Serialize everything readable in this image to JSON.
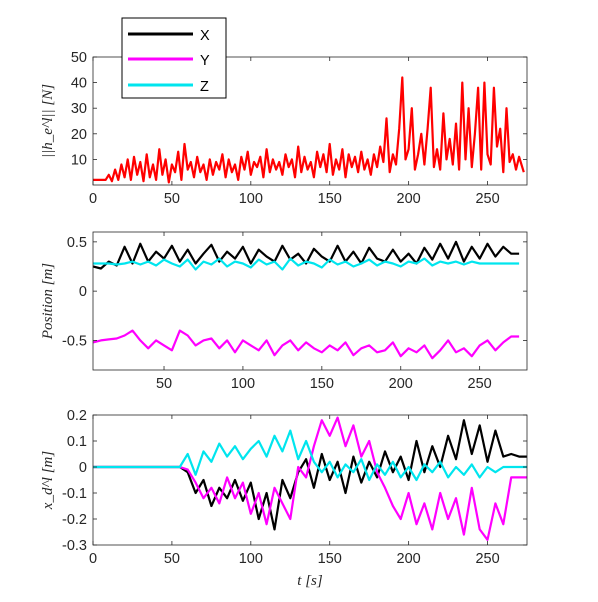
{
  "chart_data": [
    {
      "type": "line",
      "title": "",
      "xlabel": "",
      "ylabel": "||h_e^l|| [N]",
      "xlim": [
        0,
        275
      ],
      "ylim": [
        0,
        50
      ],
      "xticks": [
        "0",
        "50",
        "100",
        "150",
        "200",
        "250"
      ],
      "yticks": [
        "10",
        "20",
        "30",
        "40",
        "50"
      ],
      "grid": false,
      "series": [
        {
          "name": "",
          "color": "#ff0000",
          "x": [
            0,
            8,
            10,
            12,
            14,
            16,
            18,
            20,
            22,
            24,
            26,
            28,
            30,
            32,
            34,
            36,
            38,
            40,
            42,
            44,
            46,
            48,
            50,
            52,
            54,
            56,
            58,
            60,
            62,
            64,
            66,
            68,
            70,
            72,
            74,
            76,
            78,
            80,
            82,
            84,
            86,
            88,
            90,
            92,
            94,
            96,
            98,
            100,
            102,
            104,
            106,
            108,
            110,
            112,
            114,
            116,
            118,
            120,
            122,
            124,
            126,
            128,
            130,
            132,
            134,
            136,
            138,
            140,
            142,
            144,
            146,
            148,
            150,
            152,
            154,
            156,
            158,
            160,
            162,
            164,
            166,
            168,
            170,
            172,
            174,
            176,
            178,
            180,
            182,
            184,
            186,
            188,
            190,
            192,
            194,
            196,
            198,
            200,
            202,
            204,
            206,
            208,
            210,
            212,
            214,
            216,
            218,
            220,
            222,
            224,
            226,
            228,
            230,
            232,
            234,
            236,
            238,
            240,
            242,
            244,
            246,
            248,
            250,
            252,
            254,
            256,
            258,
            260,
            262,
            264,
            266,
            268,
            270,
            273
          ],
          "y": [
            2,
            2,
            4,
            1.5,
            6,
            2,
            8,
            3,
            10,
            2,
            11,
            4,
            9,
            1.5,
            12,
            3,
            8,
            2,
            14,
            4,
            10,
            1,
            8,
            5,
            13,
            2,
            16,
            6,
            9,
            3,
            11,
            5,
            8,
            2,
            10,
            4,
            9,
            6,
            12,
            3,
            10,
            5,
            8,
            2,
            11,
            6,
            13,
            4,
            9,
            7,
            11,
            3,
            14,
            5,
            10,
            6,
            9,
            4,
            12,
            7,
            10,
            3,
            15,
            5,
            11,
            6,
            9,
            3,
            13,
            7,
            12,
            5,
            16,
            4,
            10,
            6,
            14,
            3,
            12,
            7,
            11,
            5,
            13,
            6,
            10,
            4,
            12,
            7,
            15,
            9,
            26,
            5,
            12,
            8,
            22,
            42,
            10,
            14,
            30,
            6,
            12,
            20,
            8,
            22,
            38,
            7,
            14,
            6,
            28,
            10,
            18,
            8,
            24,
            6,
            40,
            10,
            30,
            7,
            20,
            38,
            6,
            40,
            12,
            8,
            38,
            15,
            22,
            5,
            30,
            9,
            12,
            6,
            11,
            5
          ]
        }
      ]
    },
    {
      "type": "line",
      "title": "",
      "xlabel": "",
      "ylabel": "Position [m]",
      "xlim": [
        5,
        280
      ],
      "ylim": [
        -0.8,
        0.6
      ],
      "xticks": [
        "50",
        "100",
        "150",
        "200",
        "250"
      ],
      "yticks": [
        "-0.5",
        "0",
        "0.5"
      ],
      "grid": false,
      "series": [
        {
          "name": "X",
          "color": "#000000",
          "x": [
            5,
            10,
            15,
            20,
            25,
            30,
            35,
            40,
            45,
            50,
            55,
            60,
            65,
            70,
            75,
            80,
            85,
            90,
            95,
            100,
            105,
            110,
            115,
            120,
            125,
            130,
            135,
            140,
            145,
            150,
            155,
            160,
            165,
            170,
            175,
            180,
            185,
            190,
            195,
            200,
            205,
            210,
            215,
            220,
            225,
            230,
            235,
            240,
            245,
            250,
            255,
            260,
            265,
            270,
            275
          ],
          "y": [
            0.25,
            0.23,
            0.3,
            0.26,
            0.45,
            0.28,
            0.48,
            0.3,
            0.4,
            0.33,
            0.46,
            0.3,
            0.42,
            0.28,
            0.38,
            0.47,
            0.3,
            0.4,
            0.33,
            0.45,
            0.28,
            0.42,
            0.35,
            0.3,
            0.46,
            0.32,
            0.38,
            0.28,
            0.43,
            0.35,
            0.3,
            0.46,
            0.3,
            0.4,
            0.28,
            0.44,
            0.33,
            0.3,
            0.42,
            0.3,
            0.38,
            0.28,
            0.44,
            0.32,
            0.48,
            0.33,
            0.5,
            0.3,
            0.45,
            0.33,
            0.48,
            0.35,
            0.45,
            0.38,
            0.38
          ]
        },
        {
          "name": "Y",
          "color": "#ff00ff",
          "x": [
            5,
            10,
            15,
            20,
            25,
            30,
            35,
            40,
            45,
            50,
            55,
            60,
            65,
            70,
            75,
            80,
            85,
            90,
            95,
            100,
            105,
            110,
            115,
            120,
            125,
            130,
            135,
            140,
            145,
            150,
            155,
            160,
            165,
            170,
            175,
            180,
            185,
            190,
            195,
            200,
            205,
            210,
            215,
            220,
            225,
            230,
            235,
            240,
            245,
            250,
            255,
            260,
            265,
            270,
            275
          ],
          "y": [
            -0.52,
            -0.5,
            -0.49,
            -0.48,
            -0.45,
            -0.4,
            -0.5,
            -0.58,
            -0.5,
            -0.55,
            -0.6,
            -0.4,
            -0.45,
            -0.55,
            -0.5,
            -0.48,
            -0.58,
            -0.5,
            -0.62,
            -0.5,
            -0.55,
            -0.6,
            -0.5,
            -0.65,
            -0.55,
            -0.5,
            -0.6,
            -0.52,
            -0.58,
            -0.62,
            -0.55,
            -0.6,
            -0.52,
            -0.65,
            -0.58,
            -0.55,
            -0.62,
            -0.6,
            -0.52,
            -0.66,
            -0.58,
            -0.62,
            -0.55,
            -0.68,
            -0.6,
            -0.5,
            -0.62,
            -0.58,
            -0.66,
            -0.55,
            -0.5,
            -0.6,
            -0.52,
            -0.46,
            -0.46
          ]
        },
        {
          "name": "Z",
          "color": "#00e5ee",
          "x": [
            5,
            10,
            15,
            20,
            25,
            30,
            35,
            40,
            45,
            50,
            55,
            60,
            65,
            70,
            75,
            80,
            85,
            90,
            95,
            100,
            105,
            110,
            115,
            120,
            125,
            130,
            135,
            140,
            145,
            150,
            155,
            160,
            165,
            170,
            175,
            180,
            185,
            190,
            195,
            200,
            205,
            210,
            215,
            220,
            225,
            230,
            235,
            240,
            245,
            250,
            255,
            260,
            265,
            270,
            275
          ],
          "y": [
            0.28,
            0.28,
            0.28,
            0.27,
            0.28,
            0.3,
            0.27,
            0.3,
            0.26,
            0.32,
            0.28,
            0.25,
            0.32,
            0.22,
            0.3,
            0.27,
            0.33,
            0.25,
            0.3,
            0.28,
            0.24,
            0.32,
            0.27,
            0.3,
            0.22,
            0.33,
            0.26,
            0.3,
            0.28,
            0.24,
            0.32,
            0.27,
            0.3,
            0.25,
            0.28,
            0.32,
            0.26,
            0.3,
            0.28,
            0.25,
            0.3,
            0.28,
            0.33,
            0.26,
            0.3,
            0.28,
            0.3,
            0.27,
            0.3,
            0.28,
            0.28,
            0.28,
            0.28,
            0.28,
            0.28
          ]
        }
      ]
    },
    {
      "type": "line",
      "title": "",
      "xlabel": "t [s]",
      "ylabel": "x_d^l [m]",
      "xlim": [
        0,
        275
      ],
      "ylim": [
        -0.3,
        0.2
      ],
      "xticks": [
        "0",
        "50",
        "100",
        "150",
        "200",
        "250"
      ],
      "yticks": [
        "-0.3",
        "-0.2",
        "-0.1",
        "0",
        "0.1",
        "0.2"
      ],
      "grid": false,
      "series": [
        {
          "name": "X",
          "color": "#000000",
          "x": [
            0,
            55,
            60,
            65,
            70,
            75,
            80,
            85,
            90,
            95,
            100,
            105,
            110,
            115,
            120,
            125,
            130,
            135,
            140,
            145,
            150,
            155,
            160,
            165,
            170,
            175,
            180,
            185,
            190,
            195,
            200,
            205,
            210,
            215,
            220,
            225,
            230,
            235,
            240,
            245,
            250,
            255,
            260,
            265,
            270,
            275
          ],
          "y": [
            0,
            0,
            -0.02,
            -0.1,
            -0.05,
            -0.15,
            -0.08,
            -0.12,
            -0.05,
            -0.13,
            -0.06,
            -0.2,
            -0.1,
            -0.24,
            -0.05,
            -0.12,
            -0.02,
            0.03,
            -0.08,
            0.05,
            -0.05,
            0.02,
            -0.1,
            0.04,
            -0.06,
            0.02,
            -0.04,
            0.06,
            -0.02,
            0.04,
            -0.05,
            0.1,
            -0.02,
            0.08,
            0.0,
            0.12,
            0.03,
            0.18,
            0.05,
            0.16,
            0.02,
            0.14,
            0.04,
            0.05,
            0.04,
            0.04
          ]
        },
        {
          "name": "Y",
          "color": "#ff00ff",
          "x": [
            0,
            55,
            60,
            65,
            70,
            75,
            80,
            85,
            90,
            95,
            100,
            105,
            110,
            115,
            120,
            125,
            130,
            135,
            140,
            145,
            150,
            155,
            160,
            165,
            170,
            175,
            180,
            185,
            190,
            195,
            200,
            205,
            210,
            215,
            220,
            225,
            230,
            235,
            240,
            245,
            250,
            255,
            260,
            265,
            270,
            275
          ],
          "y": [
            0,
            0,
            -0.01,
            -0.06,
            -0.12,
            -0.08,
            -0.14,
            -0.04,
            -0.12,
            -0.06,
            -0.18,
            -0.1,
            -0.22,
            -0.08,
            -0.14,
            -0.2,
            0.0,
            -0.04,
            0.08,
            0.18,
            0.12,
            0.19,
            0.08,
            0.16,
            0.04,
            0.1,
            -0.02,
            -0.08,
            -0.15,
            -0.2,
            -0.1,
            -0.22,
            -0.14,
            -0.24,
            -0.1,
            -0.2,
            -0.12,
            -0.26,
            -0.08,
            -0.24,
            -0.28,
            -0.14,
            -0.22,
            -0.04,
            -0.04,
            -0.04
          ]
        },
        {
          "name": "Z",
          "color": "#00e5ee",
          "x": [
            0,
            55,
            60,
            65,
            70,
            75,
            80,
            85,
            90,
            95,
            100,
            105,
            110,
            115,
            120,
            125,
            130,
            135,
            140,
            145,
            150,
            155,
            160,
            165,
            170,
            175,
            180,
            185,
            190,
            195,
            200,
            205,
            210,
            215,
            220,
            225,
            230,
            235,
            240,
            245,
            250,
            255,
            260,
            265,
            270,
            275
          ],
          "y": [
            0,
            0,
            0.05,
            -0.03,
            0.06,
            0.02,
            0.09,
            0.04,
            0.08,
            0.03,
            0.07,
            0.1,
            0.04,
            0.12,
            0.06,
            0.14,
            0.03,
            0.1,
            0.02,
            -0.02,
            0.02,
            -0.04,
            0.01,
            -0.02,
            0.03,
            -0.05,
            0.01,
            -0.03,
            0.02,
            -0.04,
            0.0,
            -0.05,
            0.01,
            -0.02,
            0.02,
            -0.04,
            0.0,
            -0.03,
            0.01,
            -0.04,
            0.0,
            -0.02,
            0.0,
            0.0,
            0.0,
            0.0
          ]
        }
      ]
    }
  ],
  "legend": {
    "placement": "top-left",
    "entries": [
      {
        "label": "X",
        "color": "#000000"
      },
      {
        "label": "Y",
        "color": "#ff00ff"
      },
      {
        "label": "Z",
        "color": "#00e5ee"
      }
    ]
  }
}
